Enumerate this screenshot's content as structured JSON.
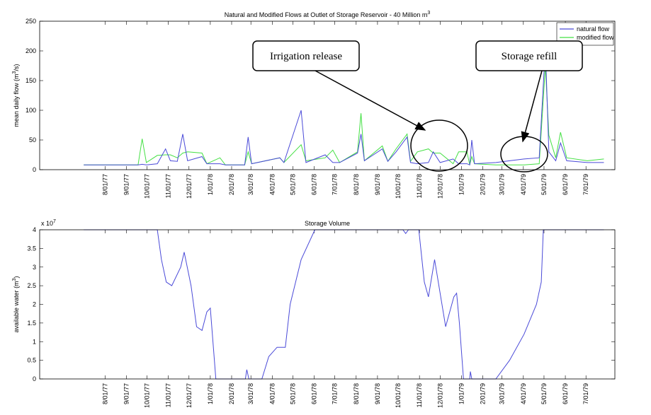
{
  "chart_data": [
    {
      "type": "line",
      "title": "Natural and Modified Flows at Outlet of Storage Reservoir - 40 Million m",
      "title_sup": "3",
      "ylabel": "mean daily flow (m",
      "ylabel_sup": "3",
      "ylabel_end": "/s)",
      "annotations": [
        "Irrigation release",
        "Storage refill"
      ],
      "legend": "upper right",
      "xlim": [
        "1977-04-28",
        "1979-08-12"
      ],
      "ylim": [
        0,
        250
      ],
      "yticks": [
        0,
        50,
        100,
        150,
        200,
        250
      ],
      "xticks": [
        {
          "value": "1977-08-01",
          "label": "8/01/77"
        },
        {
          "value": "1977-09-01",
          "label": "9/01/77"
        },
        {
          "value": "1977-10-01",
          "label": "10/01/77"
        },
        {
          "value": "1977-11-01",
          "label": "11/01/77"
        },
        {
          "value": "1977-12-01",
          "label": "12/01/77"
        },
        {
          "value": "1978-01-01",
          "label": "1/01/78"
        },
        {
          "value": "1978-02-01",
          "label": "2/01/78"
        },
        {
          "value": "1978-03-01",
          "label": "3/01/78"
        },
        {
          "value": "1978-04-01",
          "label": "4/01/78"
        },
        {
          "value": "1978-05-01",
          "label": "5/01/78"
        },
        {
          "value": "1978-06-01",
          "label": "6/01/78"
        },
        {
          "value": "1978-07-01",
          "label": "7/01/78"
        },
        {
          "value": "1978-08-01",
          "label": "8/01/78"
        },
        {
          "value": "1978-09-01",
          "label": "9/01/78"
        },
        {
          "value": "1978-10-01",
          "label": "10/01/78"
        },
        {
          "value": "1978-11-01",
          "label": "11/01/78"
        },
        {
          "value": "1978-12-01",
          "label": "12/01/78"
        },
        {
          "value": "1979-01-01",
          "label": "1/01/79"
        },
        {
          "value": "1979-02-01",
          "label": "2/01/79"
        },
        {
          "value": "1979-03-01",
          "label": "3/01/79"
        },
        {
          "value": "1979-04-01",
          "label": "4/01/79"
        },
        {
          "value": "1979-05-01",
          "label": "5/01/79"
        },
        {
          "value": "1979-06-01",
          "label": "6/01/79"
        },
        {
          "value": "1979-07-01",
          "label": "7/01/79"
        }
      ],
      "x": [
        "1977-07-01",
        "1977-09-18",
        "1977-09-24",
        "1977-09-30",
        "1977-10-16",
        "1977-10-28",
        "1977-11-04",
        "1977-11-14",
        "1977-11-22",
        "1977-11-29",
        "1977-12-20",
        "1977-12-27",
        "1978-01-15",
        "1978-01-23",
        "1978-02-20",
        "1978-02-25",
        "1978-03-02",
        "1978-04-12",
        "1978-04-18",
        "1978-05-13",
        "1978-05-20",
        "1978-06-17",
        "1978-06-28",
        "1978-07-08",
        "1978-08-03",
        "1978-08-08",
        "1978-08-13",
        "1978-09-08",
        "1978-09-16",
        "1978-09-28",
        "1978-10-14",
        "1978-10-19",
        "1978-10-29",
        "1978-11-14",
        "1978-11-21",
        "1978-12-01",
        "1978-12-20",
        "1978-12-28",
        "1979-01-09",
        "1979-01-13",
        "1979-01-16",
        "1979-01-20",
        "1979-02-20",
        "1979-03-12",
        "1979-04-02",
        "1979-04-24",
        "1979-05-03",
        "1979-05-08",
        "1979-05-18",
        "1979-05-25",
        "1979-06-03",
        "1979-07-03",
        "1979-07-27"
      ],
      "series": [
        {
          "name": "natural flow",
          "color": "#4a4ad8",
          "values": [
            8,
            8,
            9,
            8,
            10,
            35,
            15,
            14,
            60,
            15,
            22,
            10,
            10,
            8,
            8,
            55,
            10,
            20,
            12,
            100,
            12,
            25,
            12,
            12,
            28,
            60,
            15,
            35,
            14,
            30,
            55,
            12,
            10,
            12,
            30,
            12,
            18,
            10,
            10,
            8,
            50,
            10,
            12,
            15,
            18,
            20,
            205,
            30,
            15,
            45,
            15,
            12,
            12
          ]
        },
        {
          "name": "modified flow",
          "color": "#44e044",
          "values": [
            8,
            8,
            52,
            12,
            24,
            25,
            25,
            20,
            28,
            30,
            28,
            10,
            20,
            8,
            8,
            30,
            10,
            20,
            12,
            42,
            15,
            20,
            33,
            12,
            30,
            95,
            15,
            40,
            14,
            35,
            60,
            14,
            30,
            35,
            28,
            28,
            10,
            30,
            30,
            8,
            22,
            10,
            8,
            8,
            8,
            10,
            175,
            58,
            20,
            63,
            20,
            15,
            18
          ]
        }
      ]
    },
    {
      "type": "line",
      "title": "Storage Volume",
      "ylabel": "available water (m",
      "ylabel_sup": "3",
      "ylabel_end": ")",
      "multiplier": "x 10",
      "multiplier_sup": "7",
      "xlim": [
        "1977-04-28",
        "1979-08-12"
      ],
      "ylim": [
        0,
        4
      ],
      "yticks": [
        0,
        0.5,
        1,
        1.5,
        2,
        2.5,
        3,
        3.5,
        4
      ],
      "xticks": [
        {
          "value": "1977-08-01",
          "label": "8/01/77"
        },
        {
          "value": "1977-09-01",
          "label": "9/01/77"
        },
        {
          "value": "1977-10-01",
          "label": "10/01/77"
        },
        {
          "value": "1977-11-01",
          "label": "11/01/77"
        },
        {
          "value": "1977-12-01",
          "label": "12/01/77"
        },
        {
          "value": "1978-01-01",
          "label": "1/01/78"
        },
        {
          "value": "1978-02-01",
          "label": "2/01/78"
        },
        {
          "value": "1978-03-01",
          "label": "3/01/78"
        },
        {
          "value": "1978-04-01",
          "label": "4/01/78"
        },
        {
          "value": "1978-05-01",
          "label": "5/01/78"
        },
        {
          "value": "1978-06-01",
          "label": "6/01/78"
        },
        {
          "value": "1978-07-01",
          "label": "7/01/78"
        },
        {
          "value": "1978-08-01",
          "label": "8/01/78"
        },
        {
          "value": "1978-09-01",
          "label": "9/01/78"
        },
        {
          "value": "1978-10-01",
          "label": "10/01/78"
        },
        {
          "value": "1978-11-01",
          "label": "11/01/78"
        },
        {
          "value": "1978-12-01",
          "label": "12/01/78"
        },
        {
          "value": "1979-01-01",
          "label": "1/01/79"
        },
        {
          "value": "1979-02-01",
          "label": "2/01/79"
        },
        {
          "value": "1979-03-01",
          "label": "3/01/79"
        },
        {
          "value": "1979-04-01",
          "label": "4/01/79"
        },
        {
          "value": "1979-05-01",
          "label": "5/01/79"
        },
        {
          "value": "1979-06-01",
          "label": "6/01/79"
        },
        {
          "value": "1979-07-01",
          "label": "7/01/79"
        }
      ],
      "x": [
        "1977-07-01",
        "1977-10-16",
        "1977-10-22",
        "1977-10-29",
        "1977-11-06",
        "1977-11-19",
        "1977-11-24",
        "1977-12-04",
        "1977-12-12",
        "1977-12-20",
        "1977-12-27",
        "1978-01-01",
        "1978-01-09",
        "1978-02-21",
        "1978-02-23",
        "1978-02-26",
        "1978-03-17",
        "1978-03-27",
        "1978-04-08",
        "1978-04-20",
        "1978-04-27",
        "1978-05-13",
        "1978-06-02",
        "1978-10-08",
        "1978-10-12",
        "1978-10-16",
        "1978-10-31",
        "1978-11-08",
        "1978-11-14",
        "1978-11-23",
        "1978-12-09",
        "1978-12-21",
        "1978-12-25",
        "1978-12-29",
        "1979-01-04",
        "1979-01-13",
        "1979-01-14",
        "1979-01-16",
        "1979-02-20",
        "1979-03-12",
        "1979-04-02",
        "1979-04-20",
        "1979-04-27",
        "1979-04-30",
        "1979-07-27"
      ],
      "series": [
        {
          "name": "storage",
          "color": "#4a4ad8",
          "values": [
            4,
            4,
            3.2,
            2.6,
            2.5,
            3.0,
            3.4,
            2.5,
            1.4,
            1.3,
            1.8,
            1.9,
            0,
            0,
            0.25,
            0,
            0,
            0.6,
            0.85,
            0.85,
            2.0,
            3.2,
            4,
            4,
            3.9,
            4,
            4,
            2.6,
            2.2,
            3.2,
            1.4,
            2.2,
            2.3,
            1.5,
            0,
            0,
            0.2,
            0,
            0,
            0.5,
            1.2,
            2.0,
            2.6,
            4,
            4
          ]
        }
      ]
    }
  ]
}
